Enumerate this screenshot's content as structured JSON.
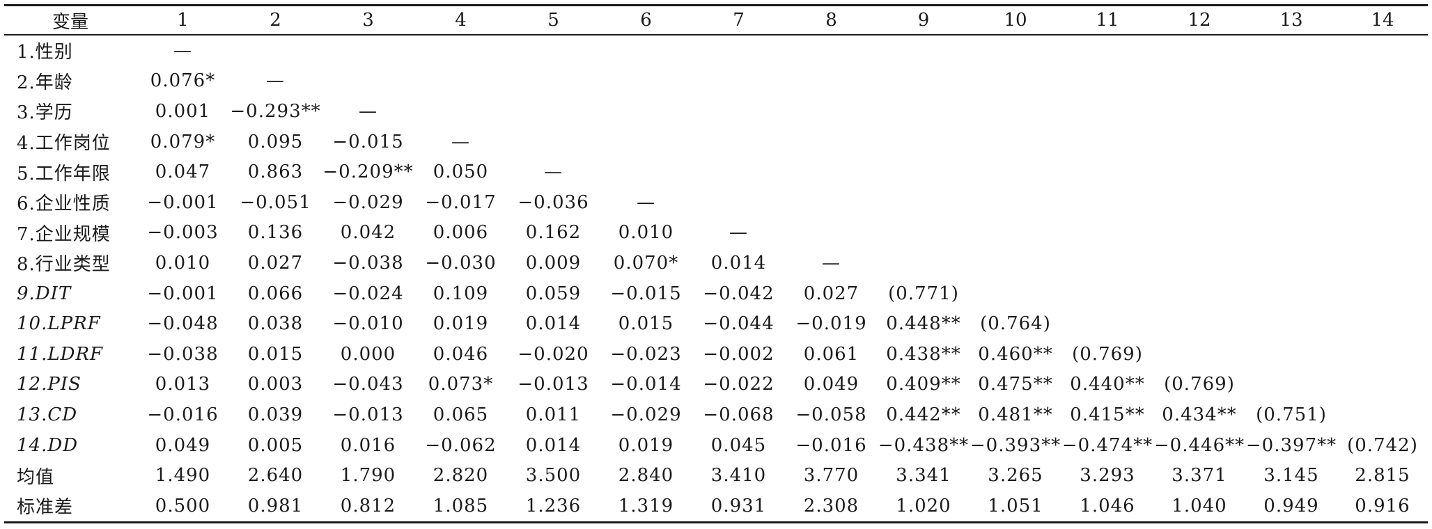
{
  "table": {
    "headers": [
      "变量",
      "1",
      "2",
      "3",
      "4",
      "5",
      "6",
      "7",
      "8",
      "9",
      "10",
      "11",
      "12",
      "13",
      "14"
    ],
    "rows": [
      {
        "name": "1.性别",
        "cells": [
          "—",
          "",
          "",
          "",
          "",
          "",
          "",
          "",
          "",
          "",
          "",
          "",
          "",
          ""
        ]
      },
      {
        "name": "2.年龄",
        "cells": [
          "0.076*",
          "—",
          "",
          "",
          "",
          "",
          "",
          "",
          "",
          "",
          "",
          "",
          "",
          ""
        ]
      },
      {
        "name": "3.学历",
        "cells": [
          "0.001",
          "−0.293**",
          "—",
          "",
          "",
          "",
          "",
          "",
          "",
          "",
          "",
          "",
          "",
          ""
        ]
      },
      {
        "name": "4.工作岗位",
        "cells": [
          "0.079*",
          "0.095",
          "−0.015",
          "—",
          "",
          "",
          "",
          "",
          "",
          "",
          "",
          "",
          "",
          ""
        ]
      },
      {
        "name": "5.工作年限",
        "cells": [
          "0.047",
          "0.863",
          "−0.209**",
          "0.050",
          "—",
          "",
          "",
          "",
          "",
          "",
          "",
          "",
          "",
          ""
        ]
      },
      {
        "name": "6.企业性质",
        "cells": [
          "−0.001",
          "−0.051",
          "−0.029",
          "−0.017",
          "−0.036",
          "—",
          "",
          "",
          "",
          "",
          "",
          "",
          "",
          ""
        ]
      },
      {
        "name": "7.企业规模",
        "cells": [
          "−0.003",
          "0.136",
          "0.042",
          "0.006",
          "0.162",
          "0.010",
          "—",
          "",
          "",
          "",
          "",
          "",
          "",
          ""
        ]
      },
      {
        "name": "8.行业类型",
        "cells": [
          "0.010",
          "0.027",
          "−0.038",
          "−0.030",
          "0.009",
          "0.070*",
          "0.014",
          "—",
          "",
          "",
          "",
          "",
          "",
          ""
        ]
      },
      {
        "name": "9.DIT",
        "cells": [
          "−0.001",
          "0.066",
          "−0.024",
          "0.109",
          "0.059",
          "−0.015",
          "−0.042",
          "0.027",
          "(0.771)",
          "",
          "",
          "",
          "",
          ""
        ]
      },
      {
        "name": "10.LPRF",
        "cells": [
          "−0.048",
          "0.038",
          "−0.010",
          "0.019",
          "0.014",
          "0.015",
          "−0.044",
          "−0.019",
          "0.448**",
          "(0.764)",
          "",
          "",
          "",
          ""
        ]
      },
      {
        "name": "11.LDRF",
        "cells": [
          "−0.038",
          "0.015",
          "0.000",
          "0.046",
          "−0.020",
          "−0.023",
          "−0.002",
          "0.061",
          "0.438**",
          "0.460**",
          "(0.769)",
          "",
          "",
          ""
        ]
      },
      {
        "name": "12.PIS",
        "cells": [
          "0.013",
          "0.003",
          "−0.043",
          "0.073*",
          "−0.013",
          "−0.014",
          "−0.022",
          "0.049",
          "0.409**",
          "0.475**",
          "0.440**",
          "(0.769)",
          "",
          ""
        ]
      },
      {
        "name": "13.CD",
        "cells": [
          "−0.016",
          "0.039",
          "−0.013",
          "0.065",
          "0.011",
          "−0.029",
          "−0.068",
          "−0.058",
          "0.442**",
          "0.481**",
          "0.415**",
          "0.434**",
          "(0.751)",
          ""
        ]
      },
      {
        "name": "14.DD",
        "cells": [
          "0.049",
          "0.005",
          "0.016",
          "−0.062",
          "0.014",
          "0.019",
          "0.045",
          "−0.016",
          "−0.438**",
          "−0.393**",
          "−0.474**",
          "−0.446**",
          "−0.397**",
          "(0.742)"
        ]
      },
      {
        "name": "均值",
        "cells": [
          "1.490",
          "2.640",
          "1.790",
          "2.820",
          "3.500",
          "2.840",
          "3.410",
          "3.770",
          "3.341",
          "3.265",
          "3.293",
          "3.371",
          "3.145",
          "2.815"
        ]
      },
      {
        "name": "标准差",
        "cells": [
          "0.500",
          "0.981",
          "0.812",
          "1.085",
          "1.236",
          "1.319",
          "0.931",
          "2.308",
          "1.020",
          "1.051",
          "1.046",
          "1.040",
          "0.949",
          "0.916"
        ]
      }
    ]
  }
}
